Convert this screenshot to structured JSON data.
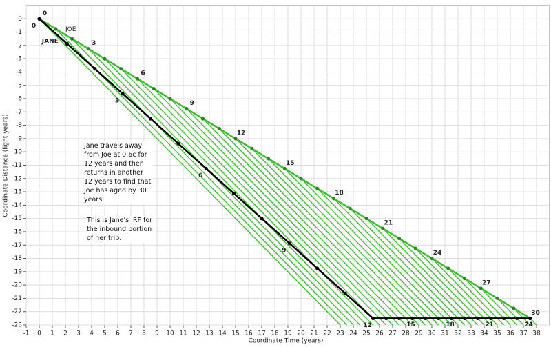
{
  "chart_data": {
    "type": "line",
    "x_label": "Coordinate Time (years)",
    "y_label": "Coordinate Distance (light-years)",
    "xlim": [
      -1,
      39
    ],
    "xticks": [
      -1,
      0,
      1,
      2,
      3,
      4,
      5,
      6,
      7,
      8,
      9,
      10,
      11,
      12,
      13,
      14,
      15,
      16,
      17,
      18,
      19,
      20,
      21,
      22,
      23,
      24,
      25,
      26,
      27,
      28,
      29,
      30,
      31,
      32,
      33,
      34,
      35,
      36,
      37,
      38
    ],
    "ylim": [
      -23,
      1
    ],
    "yticks": [
      0,
      -1,
      -2,
      -3,
      -4,
      -5,
      -6,
      -7,
      -8,
      -9,
      -10,
      -11,
      -12,
      -13,
      -14,
      -15,
      -16,
      -17,
      -18,
      -19,
      -20,
      -21,
      -22,
      -23
    ],
    "grid": true,
    "series": [
      {
        "name": "JOE",
        "color": "#3cbf2f",
        "x": [
          0,
          1.25,
          2.5,
          3.75,
          5,
          6.25,
          7.5,
          8.75,
          10,
          11.25,
          12.5,
          13.75,
          15,
          16.25,
          17.5,
          18.75,
          20,
          21.25,
          22.5,
          23.75,
          25,
          26.25,
          27.5,
          28.75,
          30,
          31.25,
          32.5,
          33.75,
          35,
          36.25,
          37.5
        ],
        "values": [
          0,
          -0.75,
          -1.5,
          -2.25,
          -3,
          -3.75,
          -4.5,
          -5.25,
          -6,
          -6.75,
          -7.5,
          -8.25,
          -9,
          -9.75,
          -10.5,
          -11.25,
          -12,
          -12.75,
          -13.5,
          -14.25,
          -15,
          -15.75,
          -16.5,
          -17.25,
          -18,
          -18.75,
          -19.5,
          -20.25,
          -21,
          -21.75,
          -22.5
        ],
        "value_labels": [
          "0",
          null,
          null,
          "3",
          null,
          null,
          "6",
          null,
          null,
          "9",
          null,
          null,
          "12",
          null,
          null,
          "15",
          null,
          null,
          "18",
          null,
          null,
          "21",
          null,
          null,
          "24",
          null,
          null,
          "27",
          null,
          null,
          "30"
        ]
      },
      {
        "name": "JANE",
        "color": "#000000",
        "x": [
          0,
          2.125,
          4.25,
          6.375,
          8.5,
          10.625,
          12.75,
          14.875,
          17,
          19.125,
          21.25,
          23.375,
          25.5,
          26.5,
          27.5,
          28.5,
          29.5,
          30.5,
          31.5,
          32.5,
          33.5,
          34.5,
          35.5,
          36.5,
          37.5
        ],
        "values": [
          0,
          -1.875,
          -3.75,
          -5.625,
          -7.5,
          -9.375,
          -11.25,
          -13.125,
          -15,
          -16.875,
          -18.75,
          -20.625,
          -22.5,
          -22.5,
          -22.5,
          -22.5,
          -22.5,
          -22.5,
          -22.5,
          -22.5,
          -22.5,
          -22.5,
          -22.5,
          -22.5,
          -22.5
        ],
        "value_labels": [
          "0",
          null,
          null,
          "3",
          null,
          null,
          "6",
          null,
          null,
          "9",
          null,
          null,
          "12",
          null,
          null,
          "15",
          null,
          null,
          "18",
          null,
          null,
          "21",
          null,
          null,
          "24"
        ]
      }
    ],
    "annotations": [
      "Jane travels away from Joe at 0.6c for 12 years and then returns in another 12 years to find that Joe has aged by 30 years.",
      "This is Jane's IRF for the inbound portion of her trip."
    ]
  }
}
